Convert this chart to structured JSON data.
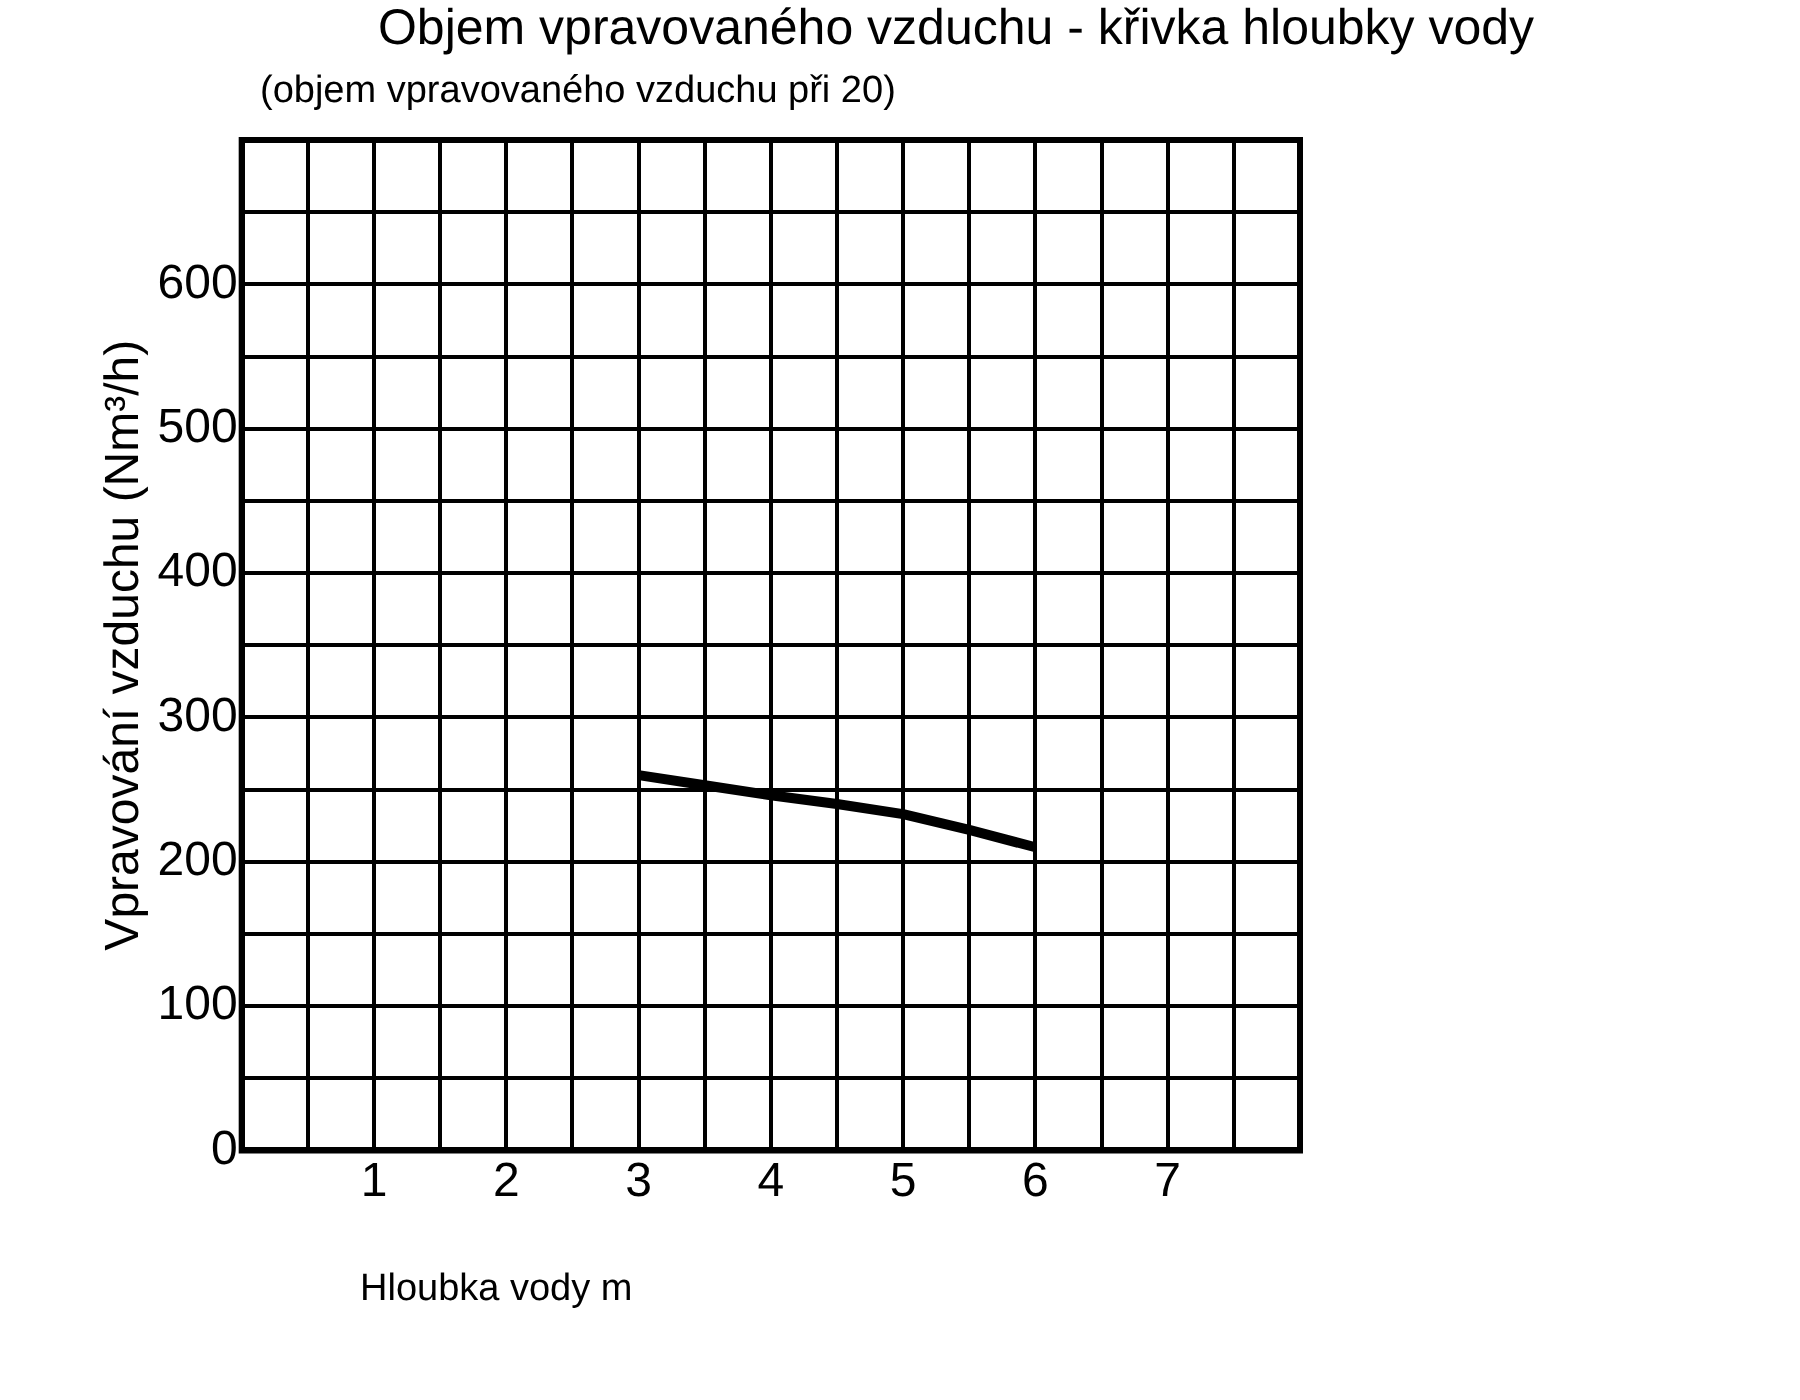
{
  "chart_data": {
    "type": "line",
    "title": "Objem vpravovaného vzduchu - křivka hloubky vody",
    "subtitle": "(objem vpravovaného vzduchu při 20)",
    "xlabel": "Hloubka vody m",
    "ylabel": "Vpravování vzduchu (Nm³/h)",
    "x": [
      3,
      3.5,
      4,
      4.5,
      5,
      5.5,
      6
    ],
    "series": [
      {
        "color": "#000000",
        "values": [
          260,
          253,
          246,
          240,
          233,
          222,
          210
        ]
      }
    ],
    "xlim": [
      0,
      8
    ],
    "xticks": [
      {
        "value": 0,
        "label": null
      },
      {
        "value": 0.5,
        "label": null
      },
      1,
      {
        "value": 1.5,
        "label": null
      },
      2,
      {
        "value": 2.5,
        "label": null
      },
      3,
      {
        "value": 3.5,
        "label": null
      },
      4,
      {
        "value": 4.5,
        "label": null
      },
      5,
      {
        "value": 5.5,
        "label": null
      },
      6,
      {
        "value": 6.5,
        "label": null
      },
      7,
      {
        "value": 7.5,
        "label": null
      },
      {
        "value": 8,
        "label": null
      }
    ],
    "ylim": [
      0,
      700
    ],
    "yticks": [
      0,
      {
        "value": 50,
        "label": null
      },
      100,
      {
        "value": 150,
        "label": null
      },
      200,
      {
        "value": 250,
        "label": null
      },
      300,
      {
        "value": 350,
        "label": null
      },
      400,
      {
        "value": 450,
        "label": null
      },
      500,
      {
        "value": 550,
        "label": null
      },
      600,
      {
        "value": 650,
        "label": null
      },
      {
        "value": 700,
        "label": null
      }
    ],
    "grid": true,
    "legend": false,
    "marker": "none",
    "line_style": "solid"
  }
}
